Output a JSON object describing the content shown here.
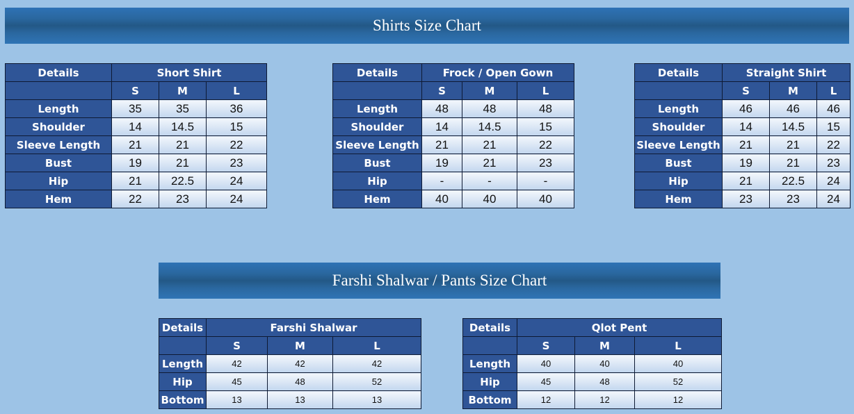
{
  "shirts_banner": "Shirts Size Chart",
  "pants_banner": "Farshi Shalwar / Pants  Size Chart",
  "tables": [
    {
      "id": "short-shirt",
      "details": "Details",
      "title": "Short Shirt",
      "sizes": [
        "S",
        "M",
        "L"
      ],
      "rows": [
        [
          "Length",
          "35",
          "35",
          "36"
        ],
        [
          "Shoulder",
          "14",
          "14.5",
          "15"
        ],
        [
          "Sleeve Length",
          "21",
          "21",
          "22"
        ],
        [
          "Bust",
          "19",
          "21",
          "23"
        ],
        [
          "Hip",
          "21",
          "22.5",
          "24"
        ],
        [
          "Hem",
          "22",
          "23",
          "24"
        ]
      ]
    },
    {
      "id": "frock-open-gown",
      "details": "Details",
      "title": "Frock / Open Gown",
      "sizes": [
        "S",
        "M",
        "L"
      ],
      "rows": [
        [
          "Length",
          "48",
          "48",
          "48"
        ],
        [
          "Shoulder",
          "14",
          "14.5",
          "15"
        ],
        [
          "Sleeve Length",
          "21",
          "21",
          "22"
        ],
        [
          "Bust",
          "19",
          "21",
          "23"
        ],
        [
          "Hip",
          "-",
          "-",
          "-"
        ],
        [
          "Hem",
          "40",
          "40",
          "40"
        ]
      ]
    },
    {
      "id": "straight-shirt",
      "details": "Details",
      "title": "Straight Shirt",
      "sizes": [
        "S",
        "M",
        "L"
      ],
      "rows": [
        [
          "Length",
          "46",
          "46",
          "46"
        ],
        [
          "Shoulder",
          "14",
          "14.5",
          "15"
        ],
        [
          "Sleeve Length",
          "21",
          "21",
          "22"
        ],
        [
          "Bust",
          "19",
          "21",
          "23"
        ],
        [
          "Hip",
          "21",
          "22.5",
          "24"
        ],
        [
          "Hem",
          "23",
          "23",
          "24"
        ]
      ]
    },
    {
      "id": "farshi-shalwar",
      "details": "Details",
      "title": "Farshi Shalwar",
      "sizes": [
        "S",
        "M",
        "L"
      ],
      "rows": [
        [
          "Length",
          "42",
          "42",
          "42"
        ],
        [
          "Hip",
          "45",
          "48",
          "52"
        ],
        [
          "Bottom",
          "13",
          "13",
          "13"
        ]
      ]
    },
    {
      "id": "qlot-pent",
      "details": "Details",
      "title": "Qlot Pent",
      "sizes": [
        "S",
        "M",
        "L"
      ],
      "rows": [
        [
          "Length",
          "40",
          "40",
          "40"
        ],
        [
          "Hip",
          "45",
          "48",
          "52"
        ],
        [
          "Bottom",
          "12",
          "12",
          "12"
        ]
      ]
    }
  ]
}
